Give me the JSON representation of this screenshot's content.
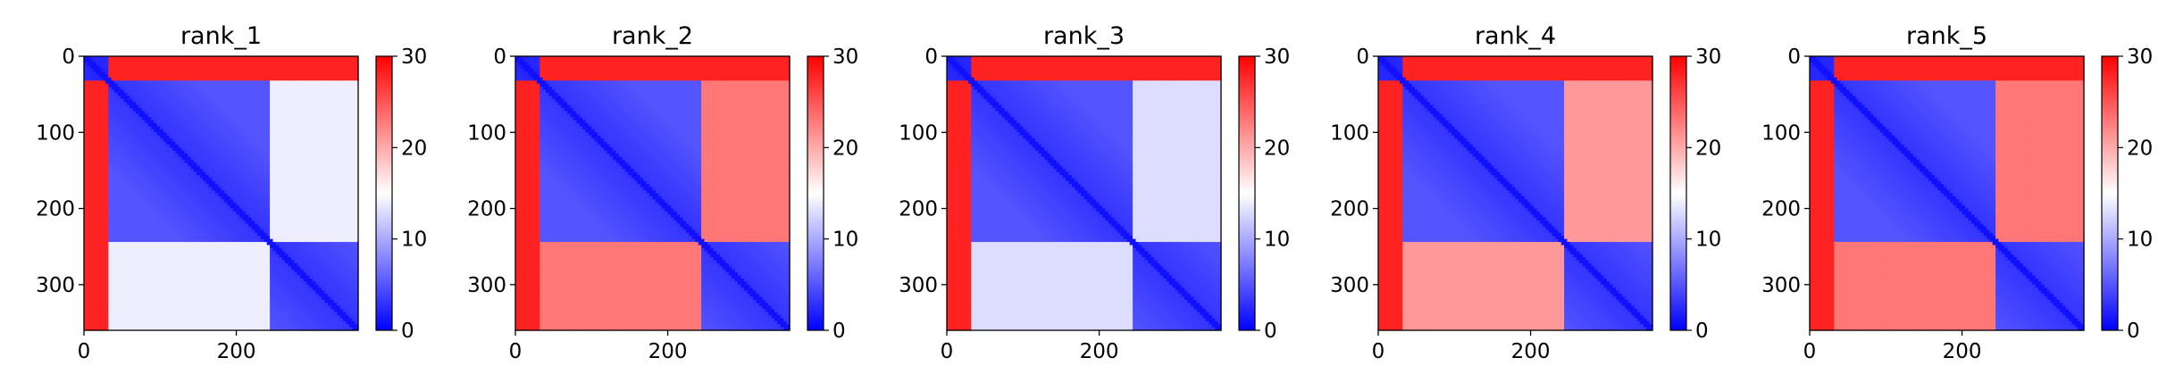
{
  "colors": {
    "low": "#0000ff",
    "mid": "#ffffff",
    "high": "#ff0000",
    "axis": "#000000",
    "text": "#000000"
  },
  "chart_data": [
    {
      "type": "heatmap",
      "title": "rank_1",
      "n": 360,
      "x_ticks": [
        0,
        200
      ],
      "y_ticks": [
        0,
        100,
        200,
        300
      ],
      "colorbar": {
        "min": 0,
        "max": 30,
        "ticks": [
          0,
          10,
          20,
          30
        ],
        "colormap": "bwr"
      },
      "domains": [
        [
          0,
          30
        ],
        [
          31,
          245
        ],
        [
          246,
          360
        ]
      ],
      "block_values": [
        [
          2,
          28,
          28
        ],
        [
          28,
          3,
          14
        ],
        [
          28,
          14,
          3
        ]
      ]
    },
    {
      "type": "heatmap",
      "title": "rank_2",
      "n": 360,
      "x_ticks": [
        0,
        200
      ],
      "y_ticks": [
        0,
        100,
        200,
        300
      ],
      "colorbar": {
        "min": 0,
        "max": 30,
        "ticks": [
          0,
          10,
          20,
          30
        ],
        "colormap": "bwr"
      },
      "domains": [
        [
          0,
          30
        ],
        [
          31,
          245
        ],
        [
          246,
          360
        ]
      ],
      "block_values": [
        [
          2,
          28,
          28
        ],
        [
          28,
          3,
          23
        ],
        [
          28,
          23,
          3
        ]
      ]
    },
    {
      "type": "heatmap",
      "title": "rank_3",
      "n": 360,
      "x_ticks": [
        0,
        200
      ],
      "y_ticks": [
        0,
        100,
        200,
        300
      ],
      "colorbar": {
        "min": 0,
        "max": 30,
        "ticks": [
          0,
          10,
          20,
          30
        ],
        "colormap": "bwr"
      },
      "domains": [
        [
          0,
          30
        ],
        [
          31,
          245
        ],
        [
          246,
          360
        ]
      ],
      "block_values": [
        [
          2,
          28,
          28
        ],
        [
          28,
          3,
          13
        ],
        [
          28,
          13,
          3
        ]
      ]
    },
    {
      "type": "heatmap",
      "title": "rank_4",
      "n": 360,
      "x_ticks": [
        0,
        200
      ],
      "y_ticks": [
        0,
        100,
        200,
        300
      ],
      "colorbar": {
        "min": 0,
        "max": 30,
        "ticks": [
          0,
          10,
          20,
          30
        ],
        "colormap": "bwr"
      },
      "domains": [
        [
          0,
          30
        ],
        [
          31,
          245
        ],
        [
          246,
          360
        ]
      ],
      "block_values": [
        [
          2,
          28,
          28
        ],
        [
          28,
          3,
          21
        ],
        [
          28,
          21,
          3
        ]
      ]
    },
    {
      "type": "heatmap",
      "title": "rank_5",
      "n": 360,
      "x_ticks": [
        0,
        200
      ],
      "y_ticks": [
        0,
        100,
        200,
        300
      ],
      "colorbar": {
        "min": 0,
        "max": 30,
        "ticks": [
          0,
          10,
          20,
          30
        ],
        "colormap": "bwr"
      },
      "domains": [
        [
          0,
          30
        ],
        [
          31,
          245
        ],
        [
          246,
          360
        ]
      ],
      "block_values": [
        [
          2,
          28,
          28
        ],
        [
          28,
          3,
          23
        ],
        [
          28,
          23,
          3
        ]
      ]
    }
  ]
}
